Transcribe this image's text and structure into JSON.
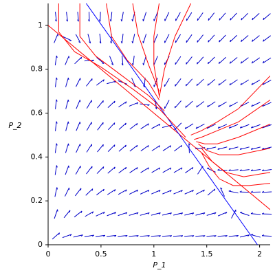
{
  "chart_data": {
    "type": "line",
    "x_label": "P_1",
    "y_label": "P_2",
    "xlim": [
      0,
      2.1
    ],
    "ylim": [
      0,
      1.1
    ],
    "xticks": [
      0,
      0.5,
      1,
      1.5,
      2
    ],
    "yticks": [
      0,
      0.2,
      0.4,
      0.6,
      0.8,
      1
    ],
    "series": [
      {
        "color": "#ff0000",
        "x": [
          0,
          2.1
        ],
        "values": [
          1,
          0.16
        ]
      },
      {
        "color": "#0000ff",
        "x": [
          0.36,
          1.98
        ],
        "values": [
          1.1,
          0
        ]
      },
      {
        "color": "#ff0000",
        "x": [
          0.1,
          0.1,
          0.25,
          0.5,
          0.8,
          1.05,
          1.3
        ],
        "values": [
          1.1,
          0.97,
          0.88,
          0.81,
          0.71,
          0.62,
          0.49
        ]
      },
      {
        "color": "#ff0000",
        "x": [
          0.3,
          0.3,
          0.45,
          0.7,
          0.95,
          1.1
        ],
        "values": [
          1.1,
          0.95,
          0.86,
          0.77,
          0.68,
          0.61
        ]
      },
      {
        "color": "#ff0000",
        "x": [
          0.55,
          0.6,
          0.75,
          0.95,
          1.05
        ],
        "values": [
          1.1,
          0.95,
          0.84,
          0.74,
          0.66
        ]
      },
      {
        "color": "#ff0000",
        "x": [
          0.8,
          0.85,
          0.95,
          1.05
        ],
        "values": [
          1.1,
          0.96,
          0.82,
          0.7
        ]
      },
      {
        "color": "#ff0000",
        "x": [
          1.05,
          1.0,
          1.0,
          1.05
        ],
        "values": [
          1.1,
          0.95,
          0.82,
          0.68
        ]
      },
      {
        "color": "#ff0000",
        "x": [
          1.35,
          1.2,
          1.1,
          1.05
        ],
        "values": [
          1.1,
          0.95,
          0.8,
          0.67
        ]
      },
      {
        "color": "#ff0000",
        "x": [
          2.1,
          1.8,
          1.6,
          1.45,
          1.35
        ],
        "values": [
          0.77,
          0.62,
          0.56,
          0.52,
          0.5
        ]
      },
      {
        "color": "#ff0000",
        "x": [
          2.1,
          1.8,
          1.6,
          1.45,
          1.38
        ],
        "values": [
          0.66,
          0.56,
          0.52,
          0.49,
          0.48
        ]
      },
      {
        "color": "#ff0000",
        "x": [
          2.1,
          1.8,
          1.6,
          1.48,
          1.4
        ],
        "values": [
          0.55,
          0.49,
          0.46,
          0.46,
          0.47
        ]
      },
      {
        "color": "#ff0000",
        "x": [
          2.1,
          1.8,
          1.62,
          1.5,
          1.42
        ],
        "values": [
          0.44,
          0.41,
          0.41,
          0.43,
          0.46
        ]
      },
      {
        "color": "#ff0000",
        "x": [
          2.1,
          1.85,
          1.68,
          1.55,
          1.45
        ],
        "values": [
          0.33,
          0.31,
          0.33,
          0.38,
          0.44
        ]
      },
      {
        "color": "#ff0000",
        "x": [
          2.1,
          1.9,
          1.75,
          1.62,
          1.52,
          1.45
        ],
        "values": [
          0.28,
          0.27,
          0.27,
          0.3,
          0.36,
          0.42
        ]
      }
    ]
  }
}
